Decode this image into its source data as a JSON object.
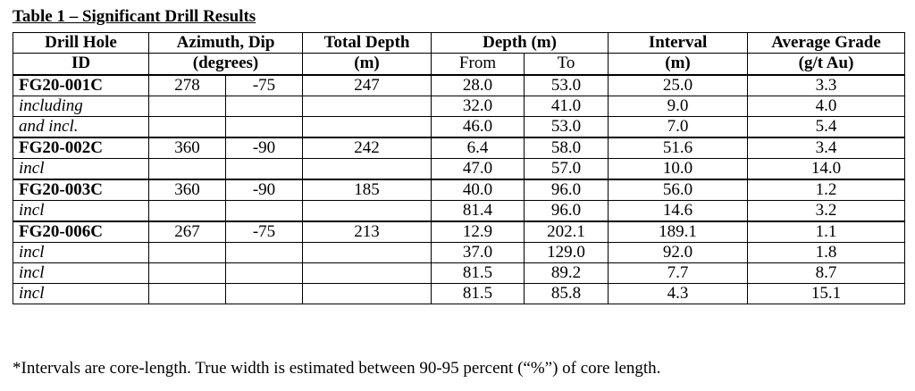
{
  "caption": "Table 1 – Significant Drill Results",
  "headers": {
    "drill_hole_line1": "Drill Hole",
    "drill_hole_line2": "ID",
    "azimuth_line1": "Azimuth, Dip",
    "azimuth_line2": "(degrees)",
    "total_depth_line1": "Total Depth",
    "total_depth_line2": "(m)",
    "depth_line1": "Depth (m)",
    "depth_from": "From",
    "depth_to": "To",
    "interval_line1": "Interval",
    "interval_line2": "(m)",
    "grade_line1": "Average Grade",
    "grade_line2": "(g/t Au)"
  },
  "rows": [
    {
      "id": "FG20-001C",
      "azimuth": "278",
      "dip": "-75",
      "total_depth": "247",
      "from": "28.0",
      "to": "53.0",
      "interval": "25.0",
      "grade": "3.3",
      "is_hole": true
    },
    {
      "id": "including",
      "azimuth": "",
      "dip": "",
      "total_depth": "",
      "from": "32.0",
      "to": "41.0",
      "interval": "9.0",
      "grade": "4.0",
      "is_hole": false
    },
    {
      "id": "and incl.",
      "azimuth": "",
      "dip": "",
      "total_depth": "",
      "from": "46.0",
      "to": "53.0",
      "interval": "7.0",
      "grade": "5.4",
      "is_hole": false
    },
    {
      "id": "FG20-002C",
      "azimuth": "360",
      "dip": "-90",
      "total_depth": "242",
      "from": "6.4",
      "to": "58.0",
      "interval": "51.6",
      "grade": "3.4",
      "is_hole": true
    },
    {
      "id": "incl",
      "azimuth": "",
      "dip": "",
      "total_depth": "",
      "from": "47.0",
      "to": "57.0",
      "interval": "10.0",
      "grade": "14.0",
      "is_hole": false
    },
    {
      "id": "FG20-003C",
      "azimuth": "360",
      "dip": "-90",
      "total_depth": "185",
      "from": "40.0",
      "to": "96.0",
      "interval": "56.0",
      "grade": "1.2",
      "is_hole": true
    },
    {
      "id": "incl",
      "azimuth": "",
      "dip": "",
      "total_depth": "",
      "from": "81.4",
      "to": "96.0",
      "interval": "14.6",
      "grade": "3.2",
      "is_hole": false
    },
    {
      "id": "FG20-006C",
      "azimuth": "267",
      "dip": "-75",
      "total_depth": "213",
      "from": "12.9",
      "to": "202.1",
      "interval": "189.1",
      "grade": "1.1",
      "is_hole": true
    },
    {
      "id": "incl",
      "azimuth": "",
      "dip": "",
      "total_depth": "",
      "from": "37.0",
      "to": "129.0",
      "interval": "92.0",
      "grade": "1.8",
      "is_hole": false
    },
    {
      "id": "incl",
      "azimuth": "",
      "dip": "",
      "total_depth": "",
      "from": "81.5",
      "to": "89.2",
      "interval": "7.7",
      "grade": "8.7",
      "is_hole": false
    },
    {
      "id": "incl",
      "azimuth": "",
      "dip": "",
      "total_depth": "",
      "from": "81.5",
      "to": "85.8",
      "interval": "4.3",
      "grade": "15.1",
      "is_hole": false
    }
  ],
  "footnote": "*Intervals are core-length. True width is estimated between 90-95 percent (“%”) of core length."
}
